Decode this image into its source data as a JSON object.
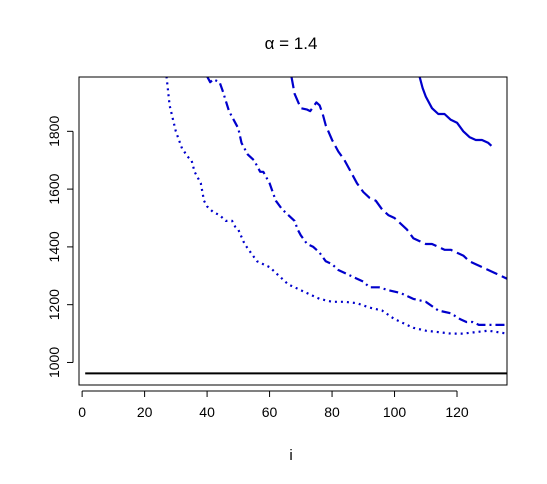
{
  "chart_data": {
    "type": "line",
    "title": "α = 1.4",
    "xlabel": "i",
    "ylabel": "",
    "xlim": [
      -1,
      136
    ],
    "ylim": [
      922,
      1988
    ],
    "xticks": [
      0,
      20,
      40,
      60,
      80,
      100,
      120
    ],
    "yticks": [
      1000,
      1200,
      1400,
      1600,
      1800
    ],
    "grid": false,
    "legend": "none",
    "series": [
      {
        "color": "#0000cc",
        "dash": "dotted",
        "x": [
          27,
          28,
          30,
          32,
          34,
          35,
          36,
          37,
          38,
          39,
          40,
          42,
          44,
          45,
          46,
          48,
          49,
          50,
          52,
          54,
          56,
          58,
          60,
          62,
          64,
          66,
          68,
          70,
          72,
          74,
          76,
          80,
          84,
          88,
          92,
          96,
          100,
          106,
          110,
          114,
          118,
          122,
          126,
          130,
          136
        ],
        "y": [
          1990,
          1890,
          1800,
          1740,
          1710,
          1700,
          1660,
          1640,
          1620,
          1560,
          1540,
          1520,
          1510,
          1500,
          1490,
          1490,
          1470,
          1460,
          1410,
          1380,
          1350,
          1340,
          1330,
          1310,
          1290,
          1270,
          1260,
          1250,
          1240,
          1230,
          1220,
          1210,
          1210,
          1205,
          1190,
          1180,
          1150,
          1120,
          1110,
          1105,
          1100,
          1100,
          1105,
          1110,
          1100
        ]
      },
      {
        "color": "#0000cc",
        "dash": "dashdot",
        "x": [
          40,
          41,
          42,
          44,
          45,
          47,
          49,
          50,
          51,
          53,
          55,
          56,
          57,
          58,
          59,
          60,
          61,
          62,
          64,
          66,
          68,
          69,
          70,
          72,
          74,
          76,
          78,
          80,
          82,
          84,
          88,
          90,
          92,
          95,
          98,
          102,
          106,
          110,
          114,
          118,
          121,
          123,
          125,
          127,
          129,
          132,
          136
        ],
        "y": [
          1990,
          1970,
          1980,
          1970,
          1940,
          1870,
          1830,
          1810,
          1760,
          1720,
          1700,
          1680,
          1660,
          1660,
          1640,
          1620,
          1590,
          1560,
          1530,
          1510,
          1490,
          1460,
          1440,
          1410,
          1400,
          1380,
          1350,
          1340,
          1320,
          1310,
          1290,
          1280,
          1260,
          1260,
          1250,
          1240,
          1220,
          1210,
          1180,
          1170,
          1150,
          1140,
          1140,
          1130,
          1130,
          1130,
          1130
        ]
      },
      {
        "color": "#0000cc",
        "dash": "longdash",
        "x": [
          67,
          68,
          70,
          72,
          73,
          75,
          76,
          77,
          78,
          80,
          82,
          84,
          86,
          88,
          90,
          92,
          94,
          96,
          98,
          100,
          102,
          104,
          106,
          108,
          110,
          112,
          114,
          116,
          118,
          120,
          122,
          124,
          126,
          128,
          130,
          132,
          134,
          136
        ],
        "y": [
          1990,
          1930,
          1880,
          1875,
          1870,
          1900,
          1890,
          1860,
          1820,
          1770,
          1730,
          1700,
          1660,
          1620,
          1590,
          1570,
          1560,
          1530,
          1510,
          1500,
          1480,
          1460,
          1430,
          1420,
          1410,
          1410,
          1400,
          1390,
          1390,
          1380,
          1370,
          1350,
          1340,
          1330,
          1320,
          1310,
          1300,
          1290
        ]
      },
      {
        "color": "#0000cc",
        "dash": "solid",
        "x": [
          108,
          109,
          110,
          112,
          114,
          116,
          118,
          120,
          122,
          124,
          126,
          128,
          130,
          131
        ],
        "y": [
          1990,
          1950,
          1920,
          1880,
          1860,
          1860,
          1840,
          1830,
          1800,
          1780,
          1770,
          1770,
          1760,
          1750
        ]
      },
      {
        "color": "#000000",
        "dash": "solid",
        "x": [
          1,
          136
        ],
        "y": [
          962,
          962
        ]
      }
    ]
  }
}
